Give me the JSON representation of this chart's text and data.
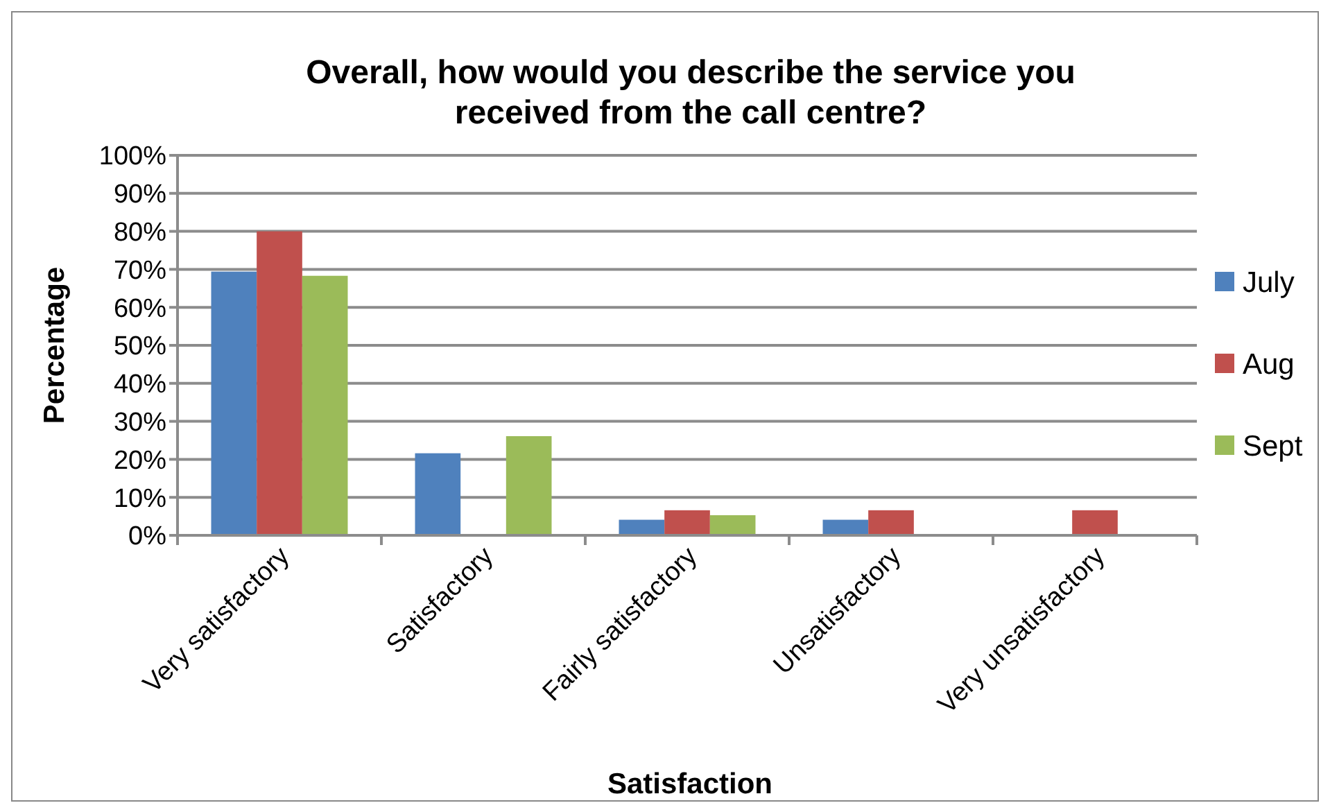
{
  "chart_data": {
    "type": "bar",
    "title": "Overall, how would you describe the service you received from the call centre?",
    "xlabel": "Satisfaction",
    "ylabel": "Percentage",
    "categories": [
      "Very satisfactory",
      "Satisfactory",
      "Fairly satisfactory",
      "Unsatisfactory",
      "Very unsatisfactory"
    ],
    "series": [
      {
        "name": "July",
        "color": "#4f81bd",
        "values": [
          69.4,
          21.6,
          4.1,
          4.1,
          null
        ]
      },
      {
        "name": "Aug",
        "color": "#c0504d",
        "values": [
          80,
          null,
          6.6,
          6.6,
          6.6
        ]
      },
      {
        "name": "Sept",
        "color": "#9bbb59",
        "values": [
          68.3,
          26.1,
          5.3,
          null,
          null
        ]
      }
    ],
    "ylim": [
      0,
      100
    ],
    "yticks": [
      {
        "value": 0,
        "label": "0%"
      },
      {
        "value": 10,
        "label": "10%"
      },
      {
        "value": 20,
        "label": "20%"
      },
      {
        "value": 30,
        "label": "30%"
      },
      {
        "value": 40,
        "label": "40%"
      },
      {
        "value": 50,
        "label": "50%"
      },
      {
        "value": 60,
        "label": "60%"
      },
      {
        "value": 70,
        "label": "70%"
      },
      {
        "value": 80,
        "label": "80%"
      },
      {
        "value": 90,
        "label": "90%"
      },
      {
        "value": 100,
        "label": "100%"
      }
    ],
    "grid": "y",
    "legend": "right"
  }
}
